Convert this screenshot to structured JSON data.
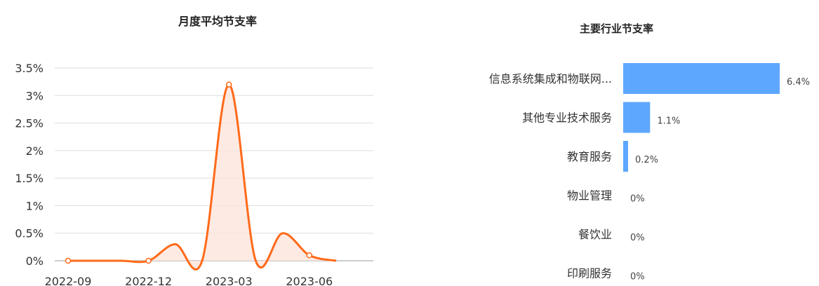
{
  "chart_data": [
    {
      "type": "line",
      "title": "月度平均节支率",
      "x": [
        "2022-09",
        "2022-10",
        "2022-11",
        "2022-12",
        "2023-01",
        "2023-02",
        "2023-03",
        "2023-04",
        "2023-05",
        "2023-06",
        "2023-07"
      ],
      "x_tick_labels": [
        "2022-09",
        "2022-12",
        "2023-03",
        "2023-06"
      ],
      "y_tick_labels": [
        "0%",
        "0.5%",
        "1%",
        "1.5%",
        "2%",
        "2.5%",
        "3%",
        "3.5%"
      ],
      "series": [
        {
          "values": [
            0,
            0,
            0,
            0,
            0.3,
            0,
            3.2,
            0,
            0.5,
            0.1,
            0
          ]
        }
      ],
      "point_markers": [
        0,
        3,
        6,
        9
      ],
      "ylim": [
        0,
        3.5
      ],
      "grid": true,
      "smooth": true,
      "area_fill": true,
      "color": "#ff6a1a",
      "fill_color": "#fde5dc"
    },
    {
      "type": "bar",
      "orientation": "horizontal",
      "title": "主要行业节支率",
      "categories": [
        "信息系统集成和物联网...",
        "其他专业技术服务",
        "教育服务",
        "物业管理",
        "餐饮业",
        "印刷服务"
      ],
      "values": [
        6.4,
        1.1,
        0.2,
        0,
        0,
        0
      ],
      "value_labels": [
        "6.4%",
        "1.1%",
        "0.2%",
        "0%",
        "0%",
        "0%"
      ],
      "xlim": [
        0,
        6.4
      ],
      "color": "#5ea7ff"
    }
  ]
}
